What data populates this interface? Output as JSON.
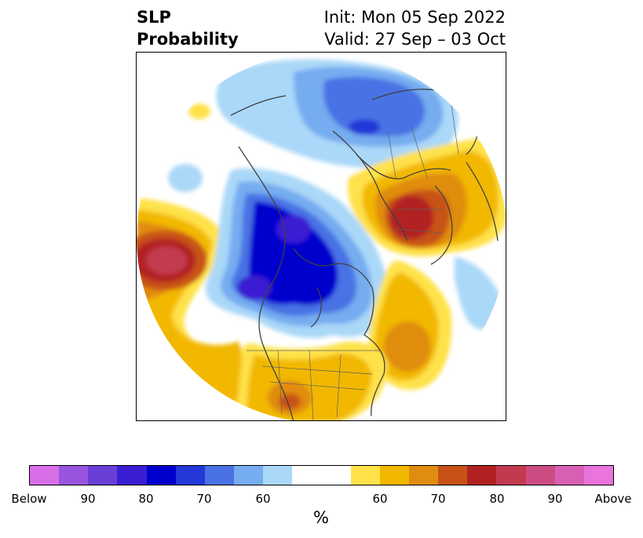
{
  "title": {
    "left_line1": "SLP",
    "left_line2": "Probability",
    "right_line1": "Init: Mon 05 Sep 2022",
    "right_line2": "Valid: 27 Sep – 03 Oct"
  },
  "colorbar": {
    "colors": [
      "#d86ee8",
      "#9a55e0",
      "#6a3fd8",
      "#3a1ed2",
      "#0000cd",
      "#2438d8",
      "#4a72e4",
      "#76acf0",
      "#aad8f8",
      "#ffffff",
      "#ffe24a",
      "#f2b800",
      "#e08c10",
      "#c85218",
      "#b22222",
      "#c23a50",
      "#cc4c84",
      "#d860b4",
      "#e874dc"
    ],
    "tick_labels": [
      "Below",
      "90",
      "80",
      "70",
      "60",
      "60",
      "70",
      "80",
      "90",
      "Above"
    ],
    "unit_label": "%"
  }
}
